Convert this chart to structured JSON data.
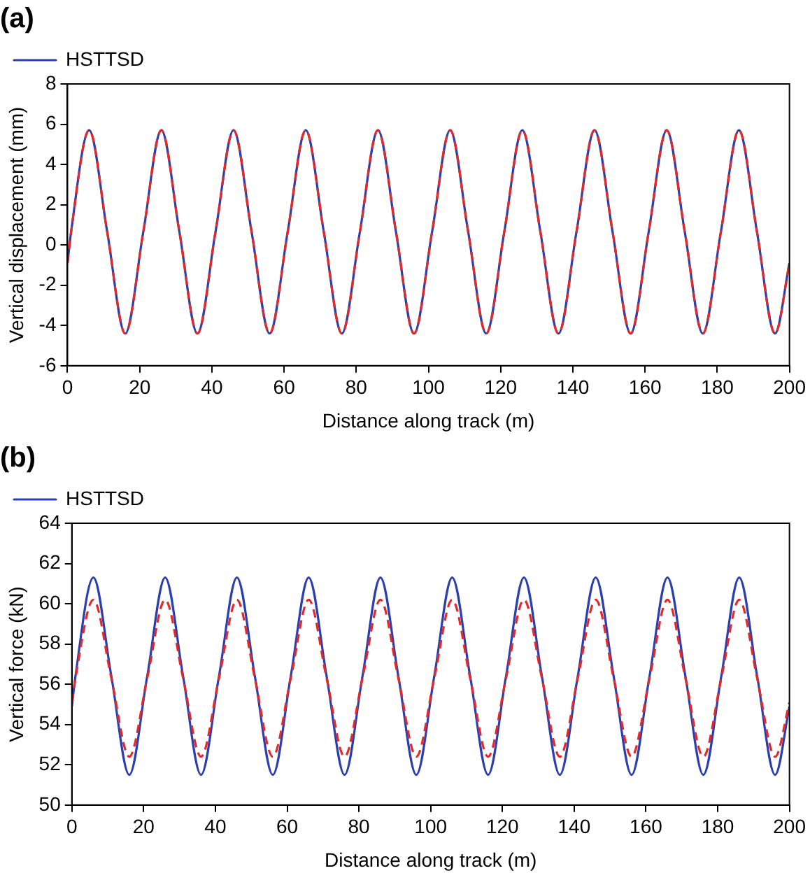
{
  "chart_data": [
    {
      "type": "line",
      "title": "(a)",
      "xlabel": "Distance along track (m)",
      "ylabel": "Vertical displacement (mm)",
      "x": [
        0,
        1,
        6,
        11,
        16,
        21,
        26,
        31,
        36,
        41,
        46,
        51,
        56,
        61,
        66,
        71,
        76,
        81,
        86,
        91,
        96,
        101,
        106,
        111,
        116,
        121,
        126,
        131,
        136,
        141,
        146,
        151,
        156,
        161,
        166,
        171,
        176,
        181,
        186,
        191,
        196,
        200
      ],
      "series": [
        {
          "name": "HSTTSD",
          "color": "#2b3fb0",
          "line_style": "solid",
          "values": [
            -0.9,
            0.65,
            5.7,
            0.65,
            -4.4,
            0.65,
            5.7,
            0.65,
            -4.4,
            0.65,
            5.7,
            0.65,
            -4.4,
            0.65,
            5.7,
            0.65,
            -4.4,
            0.65,
            5.7,
            0.65,
            -4.4,
            0.65,
            5.7,
            0.65,
            -4.4,
            0.65,
            5.7,
            0.65,
            -4.4,
            0.65,
            5.7,
            0.65,
            -4.4,
            0.65,
            5.7,
            0.65,
            -4.4,
            0.65,
            5.7,
            0.65,
            -4.4,
            -0.9
          ]
        },
        {
          "color": "#e32a2a",
          "line_style": "dashed",
          "values": [
            -0.9,
            0.65,
            5.7,
            0.65,
            -4.4,
            0.65,
            5.7,
            0.65,
            -4.4,
            0.65,
            5.7,
            0.65,
            -4.4,
            0.65,
            5.7,
            0.65,
            -4.4,
            0.65,
            5.7,
            0.65,
            -4.4,
            0.65,
            5.7,
            0.65,
            -4.4,
            0.65,
            5.7,
            0.65,
            -4.4,
            0.65,
            5.7,
            0.65,
            -4.4,
            0.65,
            5.7,
            0.65,
            -4.4,
            0.65,
            5.7,
            0.65,
            -4.4,
            -0.9
          ]
        }
      ],
      "xlim": [
        0,
        200
      ],
      "xticks": [
        0,
        20,
        40,
        60,
        80,
        100,
        120,
        140,
        160,
        180,
        200
      ],
      "ylim": [
        -6,
        8
      ],
      "yticks": [
        -6,
        -4,
        -2,
        0,
        2,
        4,
        6,
        8
      ],
      "grid": false,
      "legend": "top left",
      "marker": "none"
    },
    {
      "type": "line",
      "title": "(b)",
      "xlabel": "Distance along track (m)",
      "ylabel": "Vertical force (kN)",
      "x": [
        0,
        1,
        6,
        11,
        16,
        21,
        26,
        31,
        36,
        41,
        46,
        51,
        56,
        61,
        66,
        71,
        76,
        81,
        86,
        91,
        96,
        101,
        106,
        111,
        116,
        121,
        126,
        131,
        136,
        141,
        146,
        151,
        156,
        161,
        166,
        171,
        176,
        181,
        186,
        191,
        196,
        200
      ],
      "series": [
        {
          "name": "HSTTSD",
          "color": "#2b3fb0",
          "line_style": "solid",
          "values": [
            54.9,
            56.4,
            61.3,
            56.4,
            51.5,
            56.4,
            61.3,
            56.4,
            51.5,
            56.4,
            61.3,
            56.4,
            51.5,
            56.4,
            61.3,
            56.4,
            51.5,
            56.4,
            61.3,
            56.4,
            51.5,
            56.4,
            61.3,
            56.4,
            51.5,
            56.4,
            61.3,
            56.4,
            51.5,
            56.4,
            61.3,
            56.4,
            51.5,
            56.4,
            61.3,
            56.4,
            51.5,
            56.4,
            61.3,
            56.4,
            51.5,
            54.9
          ]
        },
        {
          "color": "#e32a2a",
          "line_style": "dashed",
          "values": [
            55.1,
            56.3,
            60.2,
            56.3,
            52.4,
            56.3,
            60.2,
            56.3,
            52.4,
            56.3,
            60.2,
            56.3,
            52.4,
            56.3,
            60.2,
            56.3,
            52.4,
            56.3,
            60.2,
            56.3,
            52.4,
            56.3,
            60.2,
            56.3,
            52.4,
            56.3,
            60.2,
            56.3,
            52.4,
            56.3,
            60.2,
            56.3,
            52.4,
            56.3,
            60.2,
            56.3,
            52.4,
            56.3,
            60.2,
            56.3,
            52.4,
            55.1
          ]
        }
      ],
      "xlim": [
        0,
        200
      ],
      "xticks": [
        0,
        20,
        40,
        60,
        80,
        100,
        120,
        140,
        160,
        180,
        200
      ],
      "ylim": [
        50,
        64
      ],
      "yticks": [
        50,
        52,
        54,
        56,
        58,
        60,
        62,
        64
      ],
      "grid": false,
      "legend": "top left",
      "marker": "none"
    }
  ]
}
